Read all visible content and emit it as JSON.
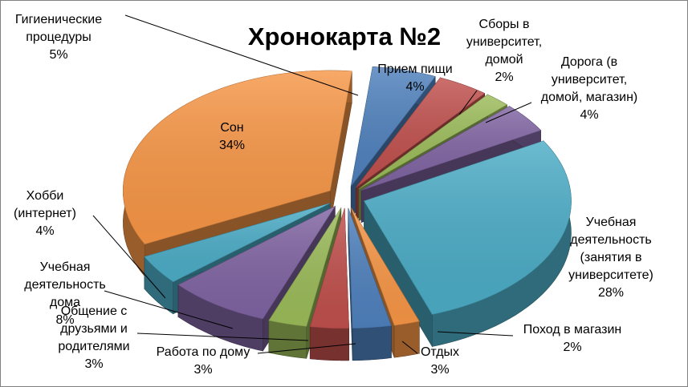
{
  "chart_data": {
    "type": "pie",
    "title": "Хронокарта №2",
    "legend": "none",
    "categories": [
      "Гигиенические процедуры",
      "Прием пищи",
      "Сборы в университет, домой",
      "Дорога (в университет, домой, магазин)",
      "Учебная деятельность (занятия в университете)",
      "Поход в магазин",
      "Отдых",
      "Работа по дому",
      "Общение с друзьями и родителями",
      "Учебная деятельность дома",
      "Хобби (интернет)",
      "Сон"
    ],
    "values": [
      5,
      4,
      2,
      4,
      28,
      2,
      3,
      3,
      3,
      8,
      4,
      34
    ],
    "value_labels": [
      "5%",
      "4%",
      "2%",
      "4%",
      "28%",
      "2%",
      "3%",
      "3%",
      "3%",
      "8%",
      "4%",
      "34%"
    ],
    "label_lines": [
      [
        "Гигиенические",
        "процедуры",
        "5%"
      ],
      [
        "Прием пищи",
        "4%"
      ],
      [
        "Сборы в",
        "университет,",
        "домой",
        "2%"
      ],
      [
        "Дорога (в",
        "университет,",
        "домой, магазин)",
        "4%"
      ],
      [
        "Учебная",
        "деятельность",
        "(занятия в",
        "университете)",
        "28%"
      ],
      [
        "Поход в магазин",
        "2%"
      ],
      [
        "Отдых",
        "3%"
      ],
      [
        "Работа по дому",
        "3%"
      ],
      [
        "Общение с",
        "друзьями и",
        "родителями",
        "3%"
      ],
      [
        "Учебная",
        "деятельность",
        "дома",
        "8%"
      ],
      [
        "Хобби",
        "(интернет)",
        "4%"
      ],
      [
        "Сон",
        "34%"
      ]
    ],
    "colors": [
      "#4F81BD",
      "#C0504D",
      "#9BBB59",
      "#8064A2",
      "#4BACC6",
      "#F79646",
      "#4F81BD",
      "#C0504D",
      "#9BBB59",
      "#8064A2",
      "#4BACC6",
      "#F79646"
    ]
  }
}
